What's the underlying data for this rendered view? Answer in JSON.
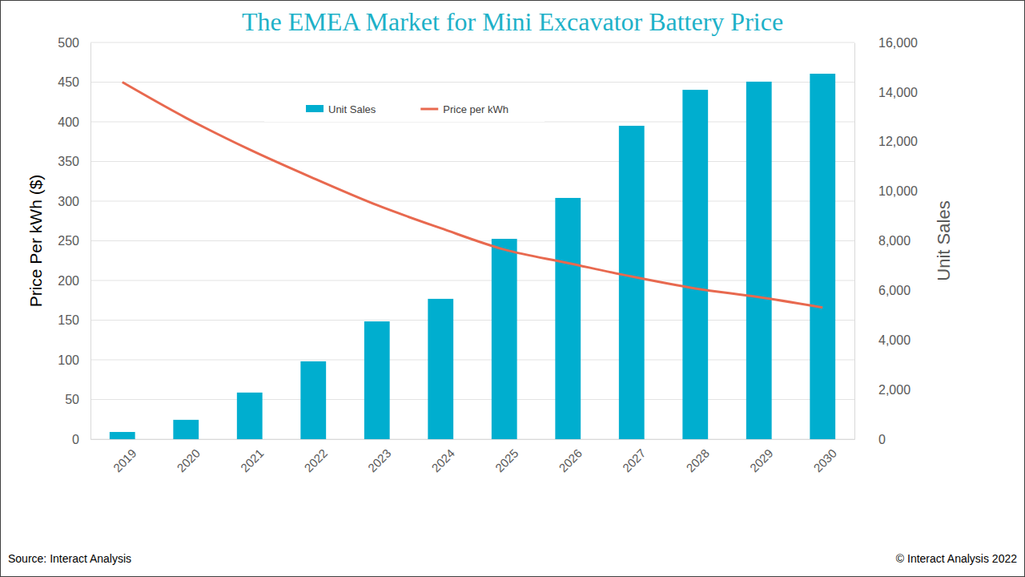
{
  "chart_data": {
    "type": "bar",
    "title": "The EMEA Market for Mini Excavator Battery Price",
    "y_label": "Price Per kWh ($)",
    "y2_label": "Unit Sales",
    "annotations": [
      "Source: Interact Analysis",
      "© Interact Analysis 2022"
    ],
    "categories": [
      "2019",
      "2020",
      "2021",
      "2022",
      "2023",
      "2024",
      "2025",
      "2026",
      "2027",
      "2028",
      "2029",
      "2030"
    ],
    "series": [
      {
        "name": "Unit Sales",
        "type": "bar",
        "color": "#00aecf",
        "axis": "y2",
        "values": [
          290,
          780,
          1880,
          3140,
          4750,
          5660,
          8080,
          9730,
          12640,
          14090,
          14420,
          14740
        ]
      },
      {
        "name": "Price per kWh",
        "type": "line",
        "color": "#e8694f",
        "values": [
          450,
          405,
          365,
          329,
          295,
          266,
          239,
          222,
          205,
          190,
          179,
          166
        ]
      }
    ],
    "ylim": [
      0,
      500
    ],
    "yticks": [
      0,
      50,
      100,
      150,
      200,
      250,
      300,
      350,
      400,
      450,
      500
    ],
    "y2lim": [
      0,
      16000
    ],
    "y2ticks": [
      0,
      {
        "value": 2000,
        "label": "2,000"
      },
      {
        "value": 4000,
        "label": "4,000"
      },
      {
        "value": 6000,
        "label": "6,000"
      },
      {
        "value": 8000,
        "label": "8,000"
      },
      {
        "value": 10000,
        "label": "10,000"
      },
      {
        "value": 12000,
        "label": "12,000"
      },
      {
        "value": 14000,
        "label": "14,000"
      },
      {
        "value": 16000,
        "label": "16,000"
      }
    ],
    "grid": true,
    "legend": "top"
  }
}
